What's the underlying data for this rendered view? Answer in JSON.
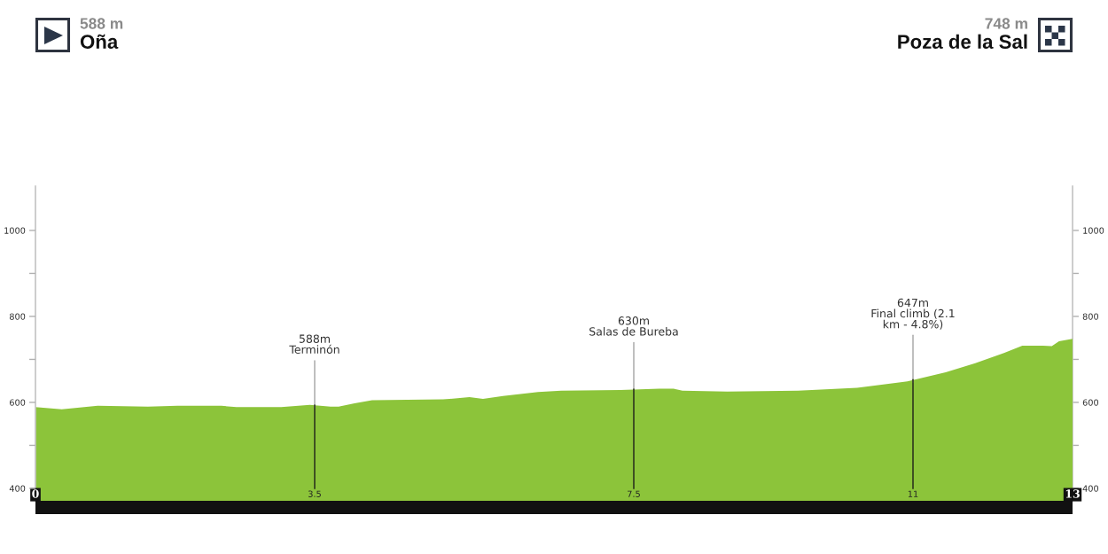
{
  "chart_data": {
    "type": "area",
    "annotations": [
      "588 m",
      "Oña",
      "748 m",
      "Poza de la Sal",
      {
        "text": "588m\nTerminón",
        "x": 3.5,
        "y": 588
      },
      {
        "text": "630m\nSalas de Bureba",
        "x": 7.5,
        "y": 630
      },
      {
        "text": "647m\nFinal climb (2.1\nkm - 4.8%)",
        "x": 11,
        "y": 647
      }
    ],
    "x": [
      0,
      0.33,
      0.78,
      1.41,
      1.78,
      2.33,
      2.52,
      3.08,
      3.44,
      3.7,
      3.8,
      4.0,
      4.22,
      5.11,
      5.19,
      5.44,
      5.61,
      5.86,
      6.3,
      6.59,
      7.33,
      7.82,
      8.0,
      8.11,
      8.67,
      9.56,
      10.3,
      10.93,
      11.41,
      11.78,
      12.14,
      12.37,
      12.52,
      12.63,
      12.74,
      12.83,
      13
    ],
    "series": [
      {
        "color": "#8cc43a",
        "values": [
          589,
          584,
          592,
          590,
          592,
          592,
          589,
          589,
          594,
          590,
          590,
          598,
          605,
          607,
          608,
          612,
          608,
          615,
          624,
          627,
          629,
          632,
          632,
          627,
          625,
          627,
          634,
          649,
          670,
          691,
          715,
          732,
          732,
          732,
          731,
          742,
          748
        ]
      }
    ],
    "ref_lines": [
      {
        "axis": "x",
        "value": 3.5,
        "color": "#2f3a1f"
      },
      {
        "axis": "x",
        "value": 7.5,
        "color": "#2f3a1f"
      },
      {
        "axis": "x",
        "value": 11,
        "color": "#2f3a1f"
      }
    ],
    "xlim": [
      0,
      13
    ],
    "xticks": [
      0,
      3.5,
      7.5,
      11,
      13
    ],
    "ylim": [
      371,
      1103
    ],
    "yticks": [
      400,
      {
        "value": 500,
        "label": null
      },
      600,
      {
        "value": 700,
        "label": null
      },
      800,
      {
        "value": 900,
        "label": null
      },
      1000
    ],
    "y2lim": [
      371,
      1103
    ],
    "y2ticks": [
      400,
      {
        "value": 500,
        "label": null
      },
      600,
      {
        "value": 700,
        "label": null
      },
      800,
      {
        "value": 900,
        "label": null
      },
      1000
    ]
  }
}
